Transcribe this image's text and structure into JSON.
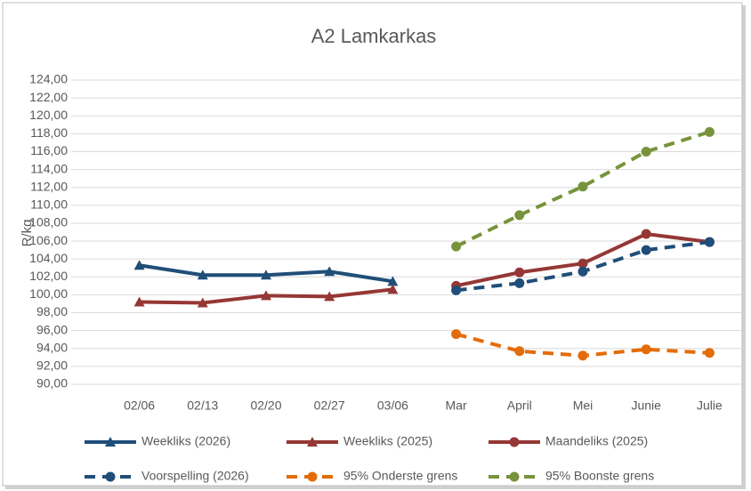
{
  "chart_data": {
    "type": "line",
    "title": "A2 Lamkarkas",
    "y_label": "R/kg",
    "categories": [
      "02/06",
      "02/13",
      "02/20",
      "02/27",
      "03/06",
      "Mar",
      "April",
      "Mei",
      "Junie",
      "Julie"
    ],
    "ylim": [
      90,
      124
    ],
    "yticks": [
      {
        "value": 90,
        "label": "90,00"
      },
      {
        "value": 92,
        "label": "92,00"
      },
      {
        "value": 94,
        "label": "94,00"
      },
      {
        "value": 96,
        "label": "96,00"
      },
      {
        "value": 98,
        "label": "98,00"
      },
      {
        "value": 100,
        "label": "100,00"
      },
      {
        "value": 102,
        "label": "102,00"
      },
      {
        "value": 104,
        "label": "104,00"
      },
      {
        "value": 106,
        "label": "106,00"
      },
      {
        "value": 108,
        "label": "108,00"
      },
      {
        "value": 110,
        "label": "110,00"
      },
      {
        "value": 112,
        "label": "112,00"
      },
      {
        "value": 114,
        "label": "114,00"
      },
      {
        "value": 116,
        "label": "116,00"
      },
      {
        "value": 118,
        "label": "118,00"
      },
      {
        "value": 120,
        "label": "120,00"
      },
      {
        "value": 122,
        "label": "122,00"
      },
      {
        "value": 124,
        "label": "124,00"
      }
    ],
    "grid": true,
    "series": [
      {
        "name": "Weekliks (2026)",
        "color": "#1f4e79",
        "marker": "triangle",
        "dashed": false,
        "values": [
          103.3,
          102.2,
          102.2,
          102.6,
          101.5,
          null,
          null,
          null,
          null,
          null
        ]
      },
      {
        "name": "Weekliks (2025)",
        "color": "#953735",
        "marker": "triangle",
        "dashed": false,
        "values": [
          99.2,
          99.1,
          99.9,
          99.8,
          100.6,
          null,
          null,
          null,
          null,
          null
        ]
      },
      {
        "name": "Maandeliks (2025)",
        "color": "#953735",
        "marker": "circle",
        "dashed": false,
        "values": [
          null,
          null,
          null,
          null,
          null,
          101.0,
          102.5,
          103.5,
          106.8,
          105.9
        ]
      },
      {
        "name": "Voorspelling (2026)",
        "color": "#1f4e79",
        "marker": "circle",
        "dashed": true,
        "values": [
          null,
          null,
          null,
          null,
          null,
          100.5,
          101.3,
          102.6,
          105.0,
          105.9
        ]
      },
      {
        "name": "95% Onderste grens",
        "color": "#e36c09",
        "marker": "circle",
        "dashed": true,
        "values": [
          null,
          null,
          null,
          null,
          null,
          95.6,
          93.7,
          93.2,
          93.9,
          93.5
        ]
      },
      {
        "name": "95% Boonste grens",
        "color": "#77933c",
        "marker": "circle",
        "dashed": true,
        "values": [
          null,
          null,
          null,
          null,
          null,
          105.4,
          108.9,
          112.1,
          116.0,
          118.2
        ]
      }
    ]
  }
}
